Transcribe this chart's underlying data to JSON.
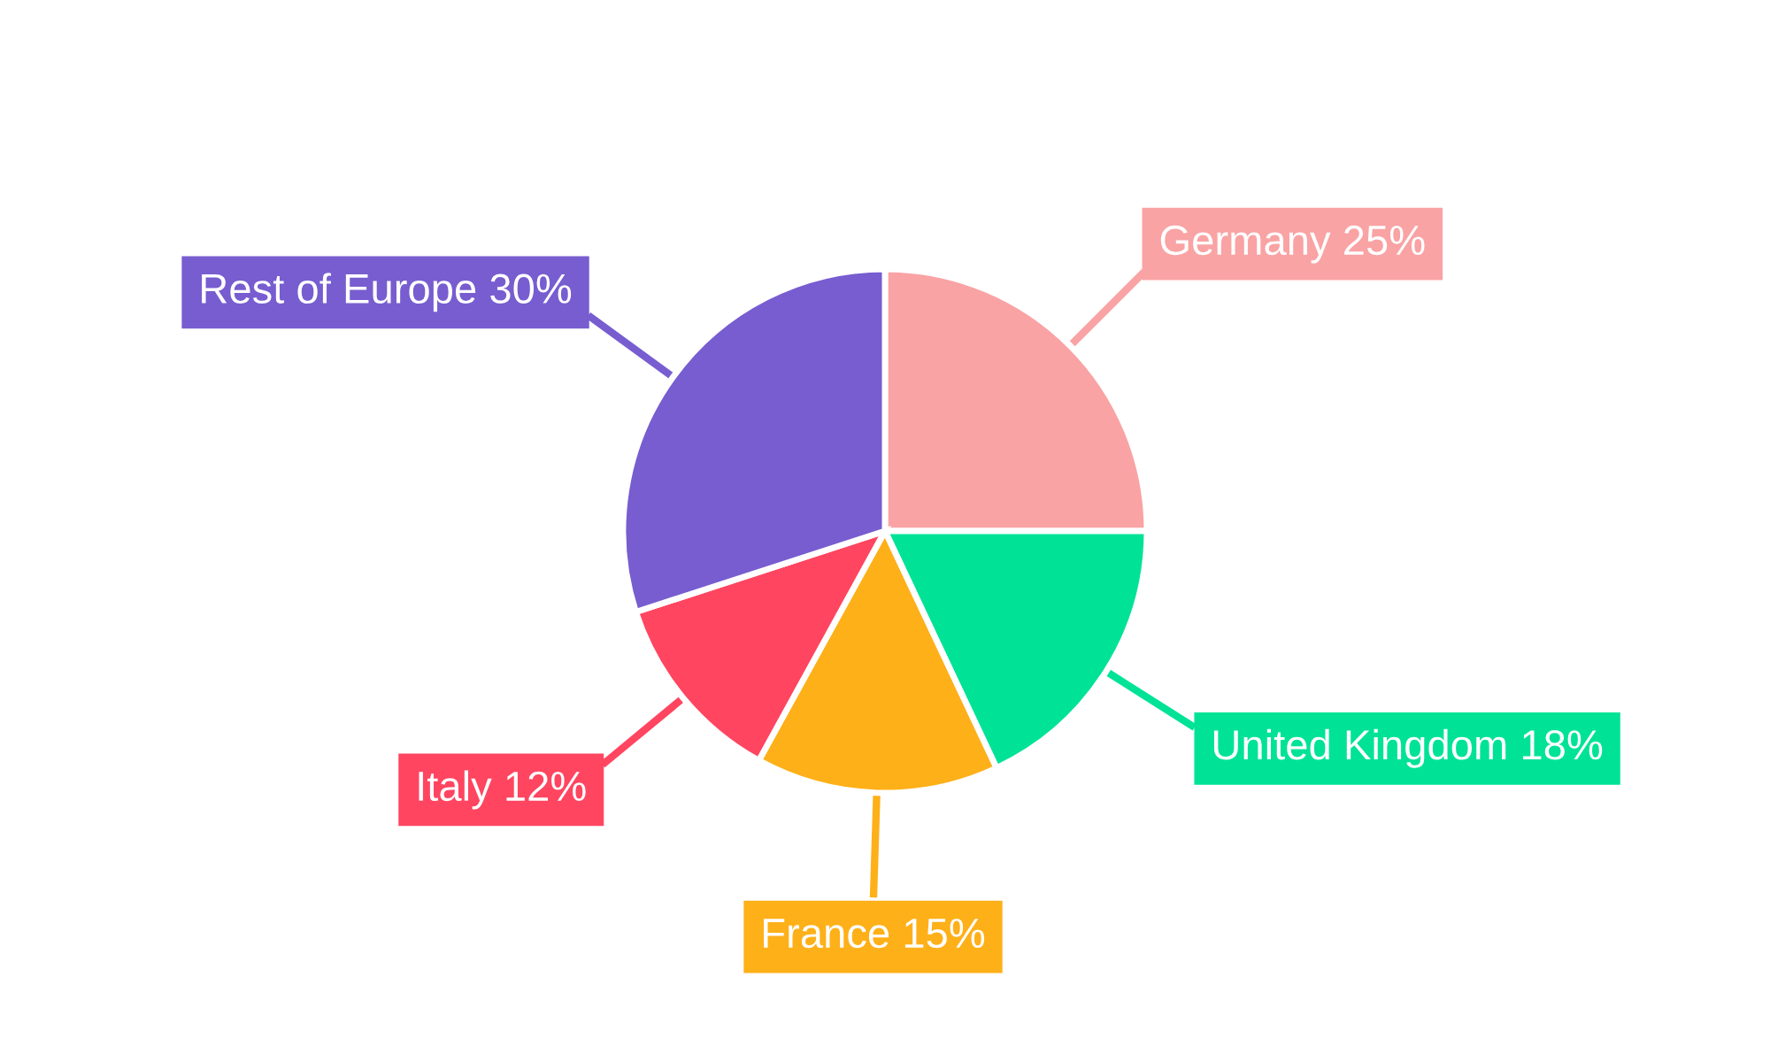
{
  "chart_data": {
    "type": "pie",
    "categories": [
      "Germany",
      "United Kingdom",
      "France",
      "Italy",
      "Rest of Europe"
    ],
    "values": [
      25,
      18,
      15,
      12,
      30
    ],
    "value_labels": [
      "25%",
      "18%",
      "15%",
      "12%",
      "30%"
    ],
    "colors": [
      "#f9a3a4",
      "#00e396",
      "#feb019",
      "#ff4560",
      "#775dd0"
    ],
    "legend": false
  }
}
